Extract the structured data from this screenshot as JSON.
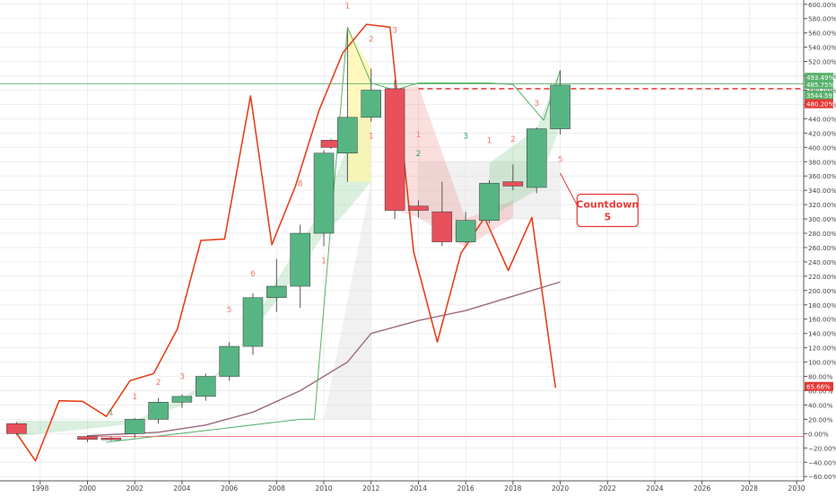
{
  "chart_data": {
    "type": "candlestick",
    "title": "",
    "xlabel": "",
    "ylabel": "",
    "x_range": [
      1996.3,
      2030.3
    ],
    "y_range": [
      -66,
      606
    ],
    "x_ticks": [
      1998,
      2000,
      2002,
      2004,
      2006,
      2008,
      2010,
      2012,
      2014,
      2016,
      2018,
      2020,
      2022,
      2024,
      2026,
      2028,
      2030
    ],
    "y_ticks": [
      -60,
      -40,
      -20,
      0,
      20,
      40,
      60,
      80,
      100,
      120,
      140,
      160,
      180,
      200,
      220,
      240,
      260,
      280,
      300,
      320,
      340,
      360,
      380,
      400,
      420,
      440,
      460,
      480,
      500,
      520,
      540,
      560,
      580,
      600
    ],
    "y_tick_suffix": "%",
    "colors": {
      "up": "#57b583",
      "down": "#e8505b",
      "red_line": "#e8401c",
      "ma_line": "#9b6a7e",
      "green_line": "#58b26a",
      "grid": "#eeeeee",
      "axis": "#555555"
    },
    "candles": [
      {
        "year": 1997,
        "open": 14,
        "close": 0,
        "high": 16,
        "low": -2
      },
      {
        "year": 2000,
        "open": -4,
        "close": -8,
        "high": -2,
        "low": -12
      },
      {
        "year": 2001,
        "open": -6,
        "close": -8,
        "high": -4,
        "low": -10
      },
      {
        "year": 2002,
        "open": 0,
        "close": 20,
        "high": 22,
        "low": -6
      },
      {
        "year": 2003,
        "open": 20,
        "close": 44,
        "high": 50,
        "low": 14
      },
      {
        "year": 2004,
        "open": 44,
        "close": 52,
        "high": 55,
        "low": 36
      },
      {
        "year": 2005,
        "open": 52,
        "close": 80,
        "high": 84,
        "low": 46
      },
      {
        "year": 2006,
        "open": 80,
        "close": 122,
        "high": 128,
        "low": 74
      },
      {
        "year": 2007,
        "open": 122,
        "close": 190,
        "high": 196,
        "low": 110
      },
      {
        "year": 2008,
        "open": 190,
        "close": 206,
        "high": 244,
        "low": 170
      },
      {
        "year": 2009,
        "open": 206,
        "close": 280,
        "high": 292,
        "low": 176
      },
      {
        "year": 2010,
        "open": 280,
        "close": 392,
        "high": 396,
        "low": 262
      },
      {
        "year": 2010.3,
        "open": 410,
        "close": 400,
        "high": 412,
        "low": 398
      },
      {
        "year": 2011,
        "open": 392,
        "close": 442,
        "high": 564,
        "low": 352
      },
      {
        "year": 2012,
        "open": 442,
        "close": 480,
        "high": 510,
        "low": 436
      },
      {
        "year": 2013,
        "open": 482,
        "close": 312,
        "high": 494,
        "low": 300
      },
      {
        "year": 2014,
        "open": 318,
        "close": 312,
        "high": 326,
        "low": 302
      },
      {
        "year": 2015,
        "open": 310,
        "close": 268,
        "high": 352,
        "low": 262
      },
      {
        "year": 2016,
        "open": 268,
        "close": 298,
        "high": 310,
        "low": 266
      },
      {
        "year": 2017,
        "open": 298,
        "close": 350,
        "high": 354,
        "low": 294
      },
      {
        "year": 2018,
        "open": 352,
        "close": 346,
        "high": 376,
        "low": 340
      },
      {
        "year": 2019,
        "open": 344,
        "close": 426,
        "high": 428,
        "low": 336
      },
      {
        "year": 2020,
        "open": 426,
        "close": 487,
        "high": 508,
        "low": 418
      }
    ],
    "red_line": [
      [
        1996.8,
        10
      ],
      [
        1997.8,
        -38
      ],
      [
        1998.8,
        46
      ],
      [
        1999.8,
        45
      ],
      [
        2000.8,
        24
      ],
      [
        2001.8,
        74
      ],
      [
        2002.8,
        84
      ],
      [
        2003.8,
        146
      ],
      [
        2004.8,
        270
      ],
      [
        2005.8,
        272
      ],
      [
        2006.9,
        472
      ],
      [
        2007.8,
        264
      ],
      [
        2008.8,
        346
      ],
      [
        2009.8,
        452
      ],
      [
        2010.8,
        532
      ],
      [
        2011.8,
        572
      ],
      [
        2012.8,
        568
      ],
      [
        2013.8,
        254
      ],
      [
        2014.8,
        128
      ],
      [
        2015.8,
        252
      ],
      [
        2016.8,
        302
      ],
      [
        2017.8,
        228
      ],
      [
        2018.8,
        302
      ],
      [
        2019.8,
        64
      ]
    ],
    "ma_line": [
      [
        2000,
        -3
      ],
      [
        2003,
        2
      ],
      [
        2005,
        12
      ],
      [
        2007,
        30
      ],
      [
        2009,
        60
      ],
      [
        2011,
        100
      ],
      [
        2012,
        140
      ],
      [
        2014,
        158
      ],
      [
        2016,
        172
      ],
      [
        2018,
        192
      ],
      [
        2020,
        212
      ]
    ],
    "green_line": [
      [
        2000.8,
        -12
      ],
      [
        2009,
        20
      ],
      [
        2009.6,
        20
      ],
      [
        2011,
        568
      ],
      [
        2012,
        490
      ],
      [
        2013,
        480
      ],
      [
        2014,
        490
      ],
      [
        2017,
        490
      ],
      [
        2018,
        488
      ],
      [
        2019.3,
        438
      ],
      [
        2020,
        508
      ]
    ],
    "shaded_green": [
      [
        1997,
        18
      ],
      [
        2002,
        18
      ],
      [
        2004,
        50
      ],
      [
        2006,
        92
      ],
      [
        2008,
        214
      ],
      [
        2010,
        318
      ],
      [
        2011,
        400
      ],
      [
        2012,
        480
      ],
      [
        2012,
        352
      ],
      [
        2011,
        312
      ],
      [
        2010,
        278
      ],
      [
        2008,
        186
      ],
      [
        2006,
        100
      ],
      [
        2004,
        40
      ],
      [
        2002,
        14
      ],
      [
        1997,
        -4
      ]
    ],
    "shaded_yellow": [
      [
        2011,
        566
      ],
      [
        2012,
        510
      ],
      [
        2012,
        352
      ],
      [
        2011,
        352
      ]
    ],
    "shaded_red": [
      [
        2013,
        482
      ],
      [
        2014,
        486
      ],
      [
        2016,
        300
      ],
      [
        2018,
        326
      ],
      [
        2018,
        302
      ],
      [
        2016,
        260
      ],
      [
        2014,
        302
      ],
      [
        2013,
        312
      ]
    ],
    "shaded_green2": [
      [
        2017,
        378
      ],
      [
        2019,
        426
      ],
      [
        2020,
        508
      ],
      [
        2020,
        430
      ],
      [
        2019,
        340
      ],
      [
        2017,
        302
      ]
    ],
    "shaded_gray": [
      [
        2010,
        20
      ],
      [
        2012,
        352
      ],
      [
        2012,
        20
      ],
      [
        2010,
        20
      ]
    ],
    "shaded_gray2": [
      [
        2014,
        380
      ],
      [
        2020,
        380
      ],
      [
        2020,
        300
      ],
      [
        2014,
        300
      ]
    ],
    "h_lines": [
      {
        "y": 489,
        "color": "#58b26a",
        "dash": "1,2",
        "width": 1.2
      },
      {
        "y": 489,
        "color": "#58b26a",
        "dash": "",
        "width": 0.8,
        "from_left": true
      },
      {
        "y": 482,
        "color": "#e53935",
        "dash": "6,4",
        "width": 1.5,
        "from_x": 2014
      },
      {
        "y": -4,
        "color": "#e57373",
        "dash": "",
        "width": 0.8,
        "from_x": 2000
      }
    ],
    "seq_labels": [
      {
        "text": "1",
        "year": 2001,
        "y": 26,
        "color": "#3aa36a"
      },
      {
        "text": "1",
        "year": 2002,
        "y": 48,
        "color": "#f07a6a"
      },
      {
        "text": "2",
        "year": 2003,
        "y": 68,
        "color": "#f07a6a"
      },
      {
        "text": "3",
        "year": 2004,
        "y": 76,
        "color": "#f07a6a"
      },
      {
        "text": "5",
        "year": 2006,
        "y": 170,
        "color": "#f07a6a"
      },
      {
        "text": "6",
        "year": 2007,
        "y": 220,
        "color": "#f07a6a"
      },
      {
        "text": "8",
        "year": 2009,
        "y": 346,
        "color": "#f07a6a"
      },
      {
        "text": "9",
        "year": 2010,
        "y": 412,
        "color": "#ffffff"
      },
      {
        "text": "1",
        "year": 2010,
        "y": 238,
        "color": "#f07a6a"
      },
      {
        "text": "1",
        "year": 2011,
        "y": 594,
        "color": "#f07a6a"
      },
      {
        "text": "2",
        "year": 2012,
        "y": 548,
        "color": "#f07a6a"
      },
      {
        "text": "3",
        "year": 2013,
        "y": 560,
        "color": "#f07a6a"
      },
      {
        "text": "1",
        "year": 2012,
        "y": 412,
        "color": "#f07a6a"
      },
      {
        "text": "1",
        "year": 2014,
        "y": 414,
        "color": "#f07a6a"
      },
      {
        "text": "2",
        "year": 2014,
        "y": 388,
        "color": "#3aa36a"
      },
      {
        "text": "3",
        "year": 2016,
        "y": 412,
        "color": "#3aa36a"
      },
      {
        "text": "1",
        "year": 2017,
        "y": 406,
        "color": "#f07a6a"
      },
      {
        "text": "2",
        "year": 2018,
        "y": 408,
        "color": "#f07a6a"
      },
      {
        "text": "3",
        "year": 2019,
        "y": 458,
        "color": "#f07a6a"
      },
      {
        "text": "5",
        "year": 2020,
        "y": 380,
        "color": "#f07a6a"
      }
    ],
    "price_tags": [
      {
        "label": "493.49%",
        "y": 498,
        "color": "#58b26a"
      },
      {
        "label": "485.75%",
        "y": 488,
        "color": "#58b26a"
      },
      {
        "label": "3544.59",
        "y": 473,
        "color": "#58b26a"
      },
      {
        "label": "480.20%",
        "y": 461,
        "color": "#e53935"
      },
      {
        "label": "65.66%",
        "y": 66,
        "color": "#e53935"
      }
    ],
    "callout": {
      "line1": "Countdown",
      "line2": "5",
      "year": 2022,
      "y": 312,
      "anchor_year": 2020,
      "anchor_y": 364
    }
  }
}
